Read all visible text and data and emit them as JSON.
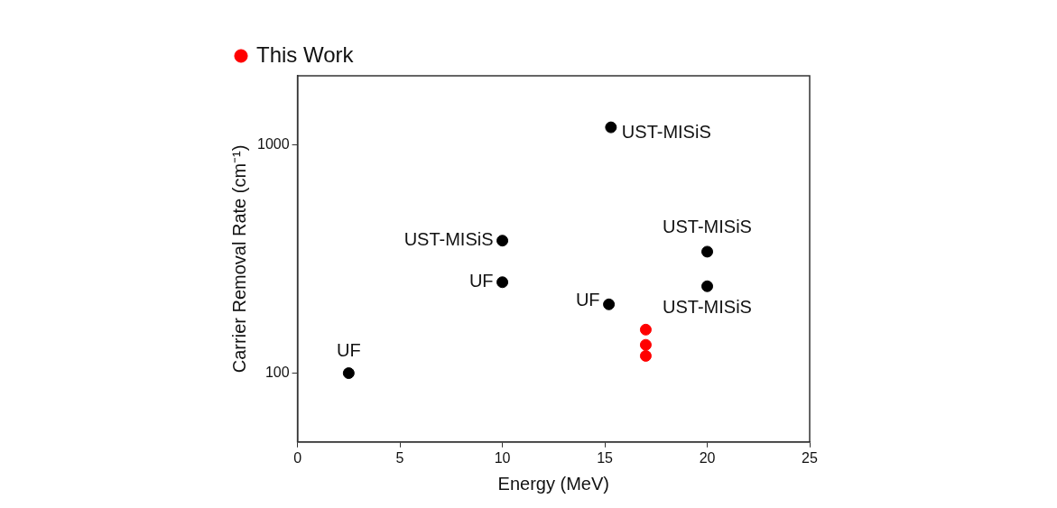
{
  "chart_data": {
    "type": "scatter",
    "xlabel": "Energy (MeV)",
    "ylabel": "Carrier Removal Rate (cm⁻¹)",
    "xlim": [
      0,
      25
    ],
    "xticks": [
      0,
      5,
      10,
      15,
      20,
      25
    ],
    "ylim": [
      50,
      2000
    ],
    "yticks": [
      100,
      1000
    ],
    "log": "y",
    "grid": false,
    "legend": "top left",
    "marker": "circle",
    "series": [
      {
        "color": "#000000",
        "x": [
          2.5,
          10,
          15.2,
          10,
          15.3,
          20,
          20
        ],
        "values": [
          100,
          250,
          200,
          380,
          1190,
          340,
          240
        ]
      },
      {
        "name": "This Work",
        "color": "#ff0000",
        "x": [
          17,
          17,
          17
        ],
        "values": [
          155,
          133,
          119
        ]
      }
    ],
    "annotations": [
      {
        "text": "UF",
        "x": 2.5,
        "y": 100
      },
      {
        "text": "UF",
        "x": 10,
        "y": 250
      },
      {
        "text": "UF",
        "x": 15.2,
        "y": 200
      },
      {
        "text": "UST-MISiS",
        "x": 10,
        "y": 380
      },
      {
        "text": "UST-MISiS",
        "x": 15.3,
        "y": 1190
      },
      {
        "text": "UST-MISiS",
        "x": 20,
        "y": 340
      },
      {
        "text": "UST-MISiS",
        "x": 20,
        "y": 240
      }
    ]
  }
}
